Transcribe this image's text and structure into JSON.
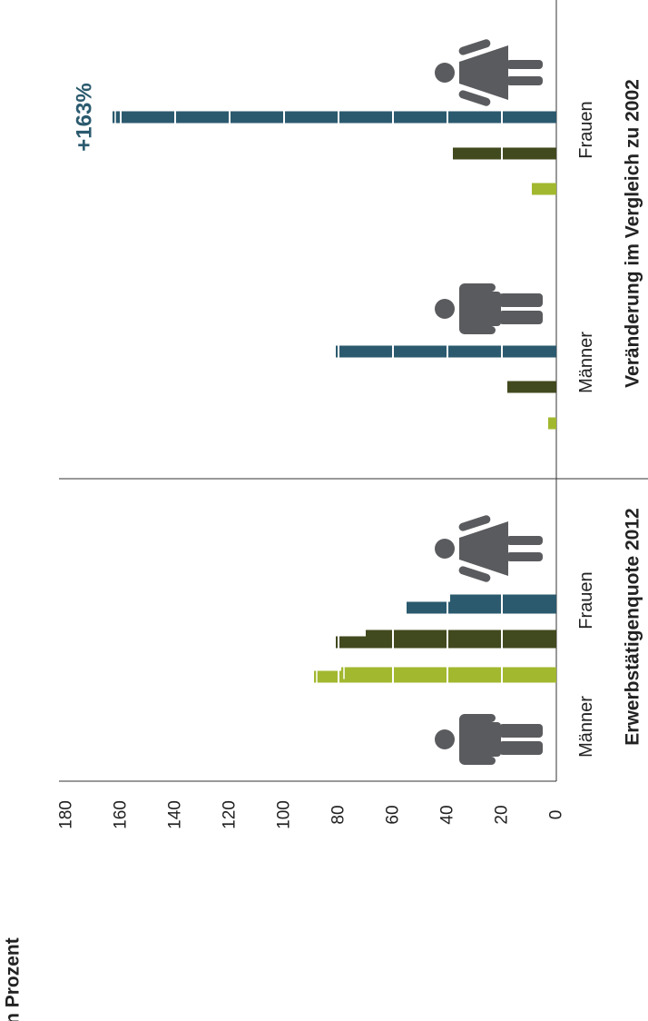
{
  "chart_data": {
    "type": "bar",
    "orientation": "rotated-90-ccw",
    "unit_label": "in Prozent",
    "ylim": [
      0,
      180
    ],
    "y_ticks": [
      0,
      20,
      40,
      60,
      80,
      100,
      120,
      140,
      160,
      180
    ],
    "panels": [
      {
        "title": "Erwerbstätigenquote 2012",
        "groups": [
          {
            "label": "Männer",
            "icon": "man-figure-icon",
            "values": [
              89,
              81,
              55
            ]
          },
          {
            "label": "Frauen",
            "icon": "woman-figure-icon",
            "values": [
              79,
              70,
              39
            ]
          }
        ]
      },
      {
        "title": "Veränderung im Vergleich zu 2002",
        "groups": [
          {
            "label": "Männer",
            "icon": "man-figure-icon",
            "values": [
              3,
              18,
              81
            ]
          },
          {
            "label": "Frauen",
            "icon": "woman-figure-icon",
            "values": [
              9,
              38,
              163
            ]
          }
        ]
      }
    ],
    "annotations": [
      {
        "panel": 1,
        "group": 1,
        "bar": 2,
        "text": "+163%"
      }
    ],
    "colors": [
      "#a2b82f",
      "#41491e",
      "#2b5a6e"
    ],
    "icon_color": "#5a5b5e",
    "grid": false
  }
}
